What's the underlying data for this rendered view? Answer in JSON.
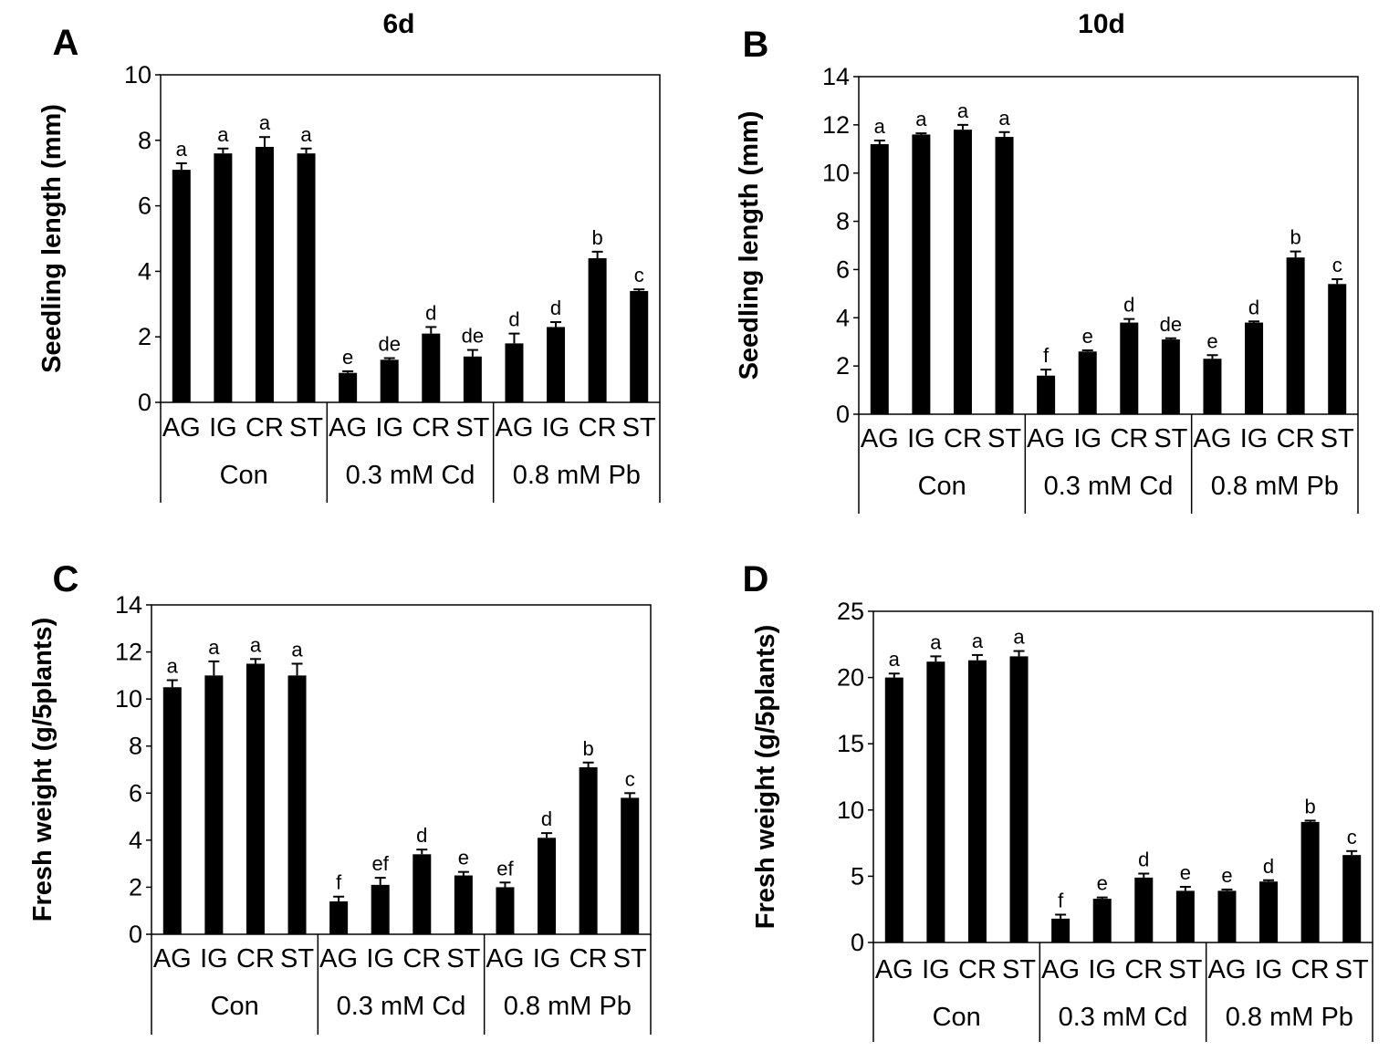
{
  "chart_data": [
    {
      "panel": "A",
      "title": "6d",
      "type": "bar",
      "ylabel": "Seedling length (mm)",
      "ylim": [
        0,
        10
      ],
      "yticks": [
        0,
        2,
        4,
        6,
        8,
        10
      ],
      "groups": [
        "Con",
        "0.3 mM Cd",
        "0.8 mM Pb"
      ],
      "categories": [
        "AG",
        "IG",
        "CR",
        "ST",
        "AG",
        "IG",
        "CR",
        "ST",
        "AG",
        "IG",
        "CR",
        "ST"
      ],
      "values": [
        7.1,
        7.6,
        7.8,
        7.6,
        0.9,
        1.3,
        2.1,
        1.4,
        1.8,
        2.3,
        4.4,
        3.4
      ],
      "errors": [
        0.2,
        0.15,
        0.3,
        0.15,
        0.05,
        0.05,
        0.2,
        0.2,
        0.3,
        0.15,
        0.2,
        0.05
      ],
      "letters": [
        "a",
        "a",
        "a",
        "a",
        "e",
        "de",
        "d",
        "de",
        "d",
        "d",
        "b",
        "c"
      ]
    },
    {
      "panel": "B",
      "title": "10d",
      "type": "bar",
      "ylabel": "Seedling length (mm)",
      "ylim": [
        0,
        14
      ],
      "yticks": [
        0,
        2,
        4,
        6,
        8,
        10,
        12,
        14
      ],
      "groups": [
        "Con",
        "0.3 mM Cd",
        "0.8 mM Pb"
      ],
      "categories": [
        "AG",
        "IG",
        "CR",
        "ST",
        "AG",
        "IG",
        "CR",
        "ST",
        "AG",
        "IG",
        "CR",
        "ST"
      ],
      "values": [
        11.2,
        11.6,
        11.8,
        11.5,
        1.6,
        2.6,
        3.8,
        3.1,
        2.3,
        3.8,
        6.5,
        5.4
      ],
      "errors": [
        0.15,
        0.05,
        0.2,
        0.2,
        0.25,
        0.05,
        0.15,
        0.05,
        0.15,
        0.05,
        0.25,
        0.2
      ],
      "letters": [
        "a",
        "a",
        "a",
        "a",
        "f",
        "e",
        "d",
        "de",
        "e",
        "d",
        "b",
        "c"
      ]
    },
    {
      "panel": "C",
      "title": "",
      "type": "bar",
      "ylabel": "Fresh weight (g/5plants)",
      "ylim": [
        0,
        14
      ],
      "yticks": [
        0,
        2,
        4,
        6,
        8,
        10,
        12,
        14
      ],
      "groups": [
        "Con",
        "0.3 mM Cd",
        "0.8 mM Pb"
      ],
      "categories": [
        "AG",
        "IG",
        "CR",
        "ST",
        "AG",
        "IG",
        "CR",
        "ST",
        "AG",
        "IG",
        "CR",
        "ST"
      ],
      "values": [
        10.5,
        11.0,
        11.5,
        11.0,
        1.4,
        2.1,
        3.4,
        2.5,
        2.0,
        4.1,
        7.1,
        5.8
      ],
      "errors": [
        0.3,
        0.6,
        0.2,
        0.5,
        0.2,
        0.3,
        0.2,
        0.15,
        0.2,
        0.2,
        0.2,
        0.2
      ],
      "letters": [
        "a",
        "a",
        "a",
        "a",
        "f",
        "ef",
        "d",
        "e",
        "ef",
        "d",
        "b",
        "c"
      ]
    },
    {
      "panel": "D",
      "title": "",
      "type": "bar",
      "ylabel": "Fresh weight (g/5plants)",
      "ylim": [
        0,
        25
      ],
      "yticks": [
        0,
        5,
        10,
        15,
        20,
        25
      ],
      "groups": [
        "Con",
        "0.3 mM Cd",
        "0.8 mM Pb"
      ],
      "categories": [
        "AG",
        "IG",
        "CR",
        "ST",
        "AG",
        "IG",
        "CR",
        "ST",
        "AG",
        "IG",
        "CR",
        "ST"
      ],
      "values": [
        20.0,
        21.2,
        21.3,
        21.6,
        1.8,
        3.3,
        4.9,
        3.9,
        3.9,
        4.6,
        9.1,
        6.6
      ],
      "errors": [
        0.3,
        0.4,
        0.4,
        0.4,
        0.3,
        0.1,
        0.3,
        0.3,
        0.1,
        0.1,
        0.1,
        0.3
      ],
      "letters": [
        "a",
        "a",
        "a",
        "a",
        "f",
        "e",
        "d",
        "e",
        "e",
        "d",
        "b",
        "c"
      ]
    }
  ]
}
